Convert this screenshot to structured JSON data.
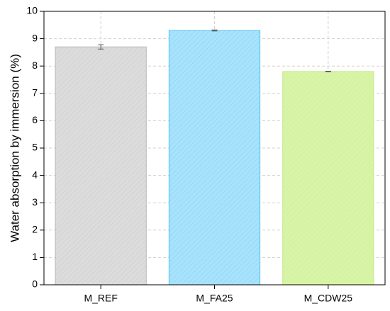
{
  "chart_data": {
    "type": "bar",
    "y_label": "Water absorption by immersion (%)",
    "categories": [
      "M_REF",
      "M_FA25",
      "M_CDW25"
    ],
    "values": [
      8.7,
      9.3,
      7.8
    ],
    "errors": [
      0.08,
      0.02,
      0.01
    ],
    "colors": [
      "#dcdcdc",
      "#a9e2fb",
      "#d8f4a6"
    ],
    "edge_colors": [
      "#b8b8b8",
      "#55c3f2",
      "#c2e88a"
    ],
    "ylim": [
      0,
      10
    ],
    "yticks": [
      0,
      1,
      2,
      3,
      4,
      5,
      6,
      7,
      8,
      9,
      10
    ],
    "grid": true
  }
}
